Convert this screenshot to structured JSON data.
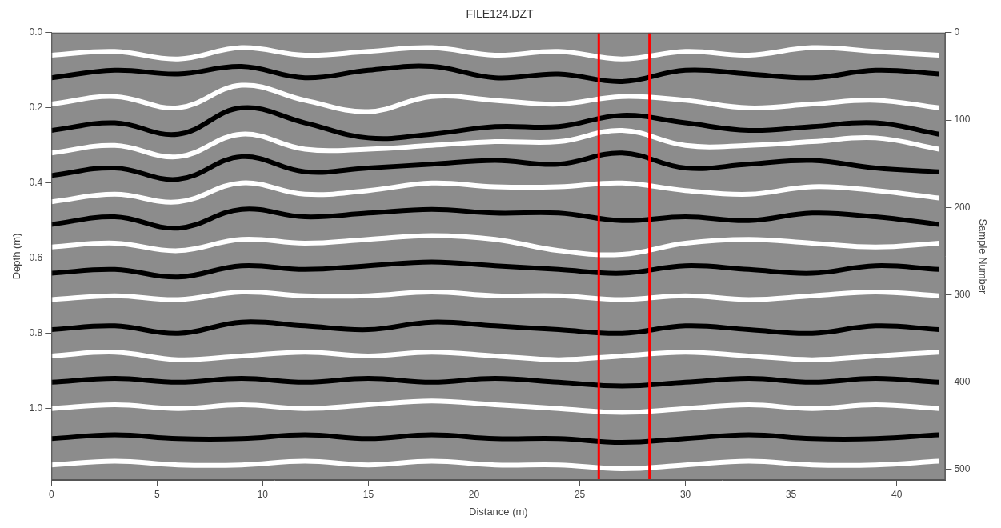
{
  "chart_data": {
    "type": "line",
    "title": "FILE124.DZT",
    "x_label": "Distance (m)",
    "y_label": "Depth (m)",
    "y2_label": "Sample Number",
    "xlim": [
      0,
      42.3
    ],
    "xticks": [
      0,
      5,
      10,
      15,
      20,
      25,
      30,
      35,
      40
    ],
    "ylim": [
      0,
      1.19
    ],
    "yticks": [
      {
        "value": 0,
        "label": "0.0"
      },
      0.2,
      0.4,
      0.6,
      0.8,
      {
        "value": 1,
        "label": "1.0"
      }
    ],
    "y2lim": [
      0,
      512
    ],
    "y2ticks": [
      0,
      100,
      200,
      300,
      400,
      500
    ],
    "grid": false,
    "series": [
      {
        "color": "#ffffff",
        "x": [
          0,
          3,
          6,
          9,
          12,
          15,
          18,
          21,
          24,
          27,
          30,
          33,
          36,
          39,
          42
        ],
        "values": [
          0.06,
          0.05,
          0.07,
          0.04,
          0.06,
          0.05,
          0.04,
          0.06,
          0.05,
          0.07,
          0.05,
          0.06,
          0.04,
          0.05,
          0.06
        ]
      },
      {
        "color": "#000000",
        "x": [
          0,
          3,
          6,
          9,
          12,
          15,
          18,
          21,
          24,
          27,
          30,
          33,
          36,
          39,
          42
        ],
        "values": [
          0.12,
          0.1,
          0.11,
          0.09,
          0.12,
          0.1,
          0.09,
          0.12,
          0.11,
          0.13,
          0.1,
          0.11,
          0.12,
          0.1,
          0.11
        ]
      },
      {
        "color": "#ffffff",
        "x": [
          0,
          3,
          6,
          9,
          12,
          15,
          18,
          21,
          24,
          27,
          30,
          33,
          36,
          39,
          42
        ],
        "values": [
          0.19,
          0.17,
          0.2,
          0.14,
          0.18,
          0.21,
          0.17,
          0.18,
          0.19,
          0.17,
          0.18,
          0.2,
          0.19,
          0.18,
          0.2
        ]
      },
      {
        "color": "#000000",
        "x": [
          0,
          3,
          6,
          9,
          12,
          15,
          18,
          21,
          24,
          27,
          30,
          33,
          36,
          39,
          42
        ],
        "values": [
          0.26,
          0.24,
          0.27,
          0.2,
          0.24,
          0.28,
          0.27,
          0.25,
          0.25,
          0.22,
          0.24,
          0.26,
          0.25,
          0.24,
          0.27
        ]
      },
      {
        "color": "#ffffff",
        "x": [
          0,
          3,
          6,
          9,
          12,
          15,
          18,
          21,
          24,
          27,
          30,
          33,
          36,
          39,
          42
        ],
        "values": [
          0.32,
          0.3,
          0.33,
          0.27,
          0.31,
          0.31,
          0.3,
          0.29,
          0.29,
          0.26,
          0.3,
          0.3,
          0.29,
          0.28,
          0.31
        ]
      },
      {
        "color": "#000000",
        "x": [
          0,
          3,
          6,
          9,
          12,
          15,
          18,
          21,
          24,
          27,
          30,
          33,
          36,
          39,
          42
        ],
        "values": [
          0.38,
          0.36,
          0.39,
          0.33,
          0.37,
          0.36,
          0.35,
          0.34,
          0.35,
          0.32,
          0.36,
          0.35,
          0.34,
          0.36,
          0.37
        ]
      },
      {
        "color": "#ffffff",
        "x": [
          0,
          3,
          6,
          9,
          12,
          15,
          18,
          21,
          24,
          27,
          30,
          33,
          36,
          39,
          42
        ],
        "values": [
          0.45,
          0.43,
          0.45,
          0.4,
          0.43,
          0.42,
          0.4,
          0.41,
          0.41,
          0.4,
          0.42,
          0.43,
          0.41,
          0.42,
          0.44
        ]
      },
      {
        "color": "#000000",
        "x": [
          0,
          3,
          6,
          9,
          12,
          15,
          18,
          21,
          24,
          27,
          30,
          33,
          36,
          39,
          42
        ],
        "values": [
          0.51,
          0.49,
          0.52,
          0.47,
          0.49,
          0.48,
          0.47,
          0.48,
          0.48,
          0.5,
          0.49,
          0.5,
          0.48,
          0.49,
          0.51
        ]
      },
      {
        "color": "#ffffff",
        "x": [
          0,
          3,
          6,
          9,
          12,
          15,
          18,
          21,
          24,
          27,
          30,
          33,
          36,
          39,
          42
        ],
        "values": [
          0.57,
          0.56,
          0.58,
          0.55,
          0.56,
          0.55,
          0.54,
          0.55,
          0.58,
          0.59,
          0.56,
          0.55,
          0.56,
          0.57,
          0.56
        ]
      },
      {
        "color": "#000000",
        "x": [
          0,
          3,
          6,
          9,
          12,
          15,
          18,
          21,
          24,
          27,
          30,
          33,
          36,
          39,
          42
        ],
        "values": [
          0.64,
          0.63,
          0.65,
          0.62,
          0.63,
          0.62,
          0.61,
          0.62,
          0.63,
          0.64,
          0.62,
          0.63,
          0.64,
          0.62,
          0.63
        ]
      },
      {
        "color": "#ffffff",
        "x": [
          0,
          3,
          6,
          9,
          12,
          15,
          18,
          21,
          24,
          27,
          30,
          33,
          36,
          39,
          42
        ],
        "values": [
          0.71,
          0.7,
          0.71,
          0.69,
          0.7,
          0.7,
          0.69,
          0.7,
          0.7,
          0.71,
          0.7,
          0.71,
          0.7,
          0.69,
          0.7
        ]
      },
      {
        "color": "#000000",
        "x": [
          0,
          3,
          6,
          9,
          12,
          15,
          18,
          21,
          24,
          27,
          30,
          33,
          36,
          39,
          42
        ],
        "values": [
          0.79,
          0.78,
          0.8,
          0.77,
          0.78,
          0.79,
          0.77,
          0.78,
          0.79,
          0.8,
          0.78,
          0.79,
          0.8,
          0.78,
          0.79
        ]
      },
      {
        "color": "#ffffff",
        "x": [
          0,
          3,
          6,
          9,
          12,
          15,
          18,
          21,
          24,
          27,
          30,
          33,
          36,
          39,
          42
        ],
        "values": [
          0.86,
          0.85,
          0.87,
          0.86,
          0.85,
          0.86,
          0.85,
          0.86,
          0.87,
          0.86,
          0.85,
          0.86,
          0.87,
          0.86,
          0.85
        ]
      },
      {
        "color": "#000000",
        "x": [
          0,
          3,
          6,
          9,
          12,
          15,
          18,
          21,
          24,
          27,
          30,
          33,
          36,
          39,
          42
        ],
        "values": [
          0.93,
          0.92,
          0.93,
          0.92,
          0.93,
          0.92,
          0.93,
          0.92,
          0.93,
          0.94,
          0.93,
          0.92,
          0.93,
          0.92,
          0.93
        ]
      },
      {
        "color": "#ffffff",
        "x": [
          0,
          3,
          6,
          9,
          12,
          15,
          18,
          21,
          24,
          27,
          30,
          33,
          36,
          39,
          42
        ],
        "values": [
          1.0,
          0.99,
          1.0,
          0.99,
          1.0,
          0.99,
          0.98,
          0.99,
          1.0,
          1.01,
          1.0,
          0.99,
          1.0,
          0.99,
          1.0
        ]
      },
      {
        "color": "#000000",
        "x": [
          0,
          3,
          6,
          9,
          12,
          15,
          18,
          21,
          24,
          27,
          30,
          33,
          36,
          39,
          42
        ],
        "values": [
          1.08,
          1.07,
          1.08,
          1.08,
          1.07,
          1.08,
          1.07,
          1.08,
          1.08,
          1.09,
          1.08,
          1.07,
          1.08,
          1.08,
          1.07
        ]
      },
      {
        "color": "#ffffff",
        "x": [
          0,
          3,
          6,
          9,
          12,
          15,
          18,
          21,
          24,
          27,
          30,
          33,
          36,
          39,
          42
        ],
        "values": [
          1.15,
          1.14,
          1.15,
          1.15,
          1.14,
          1.15,
          1.14,
          1.15,
          1.15,
          1.16,
          1.15,
          1.14,
          1.15,
          1.15,
          1.14
        ]
      },
      {
        "color": "#ff0000",
        "x": [
          25.9,
          25.9
        ],
        "values": [
          0,
          1.19
        ]
      },
      {
        "color": "#ff0000",
        "x": [
          28.3,
          28.3
        ],
        "values": [
          0,
          1.19
        ]
      }
    ]
  }
}
